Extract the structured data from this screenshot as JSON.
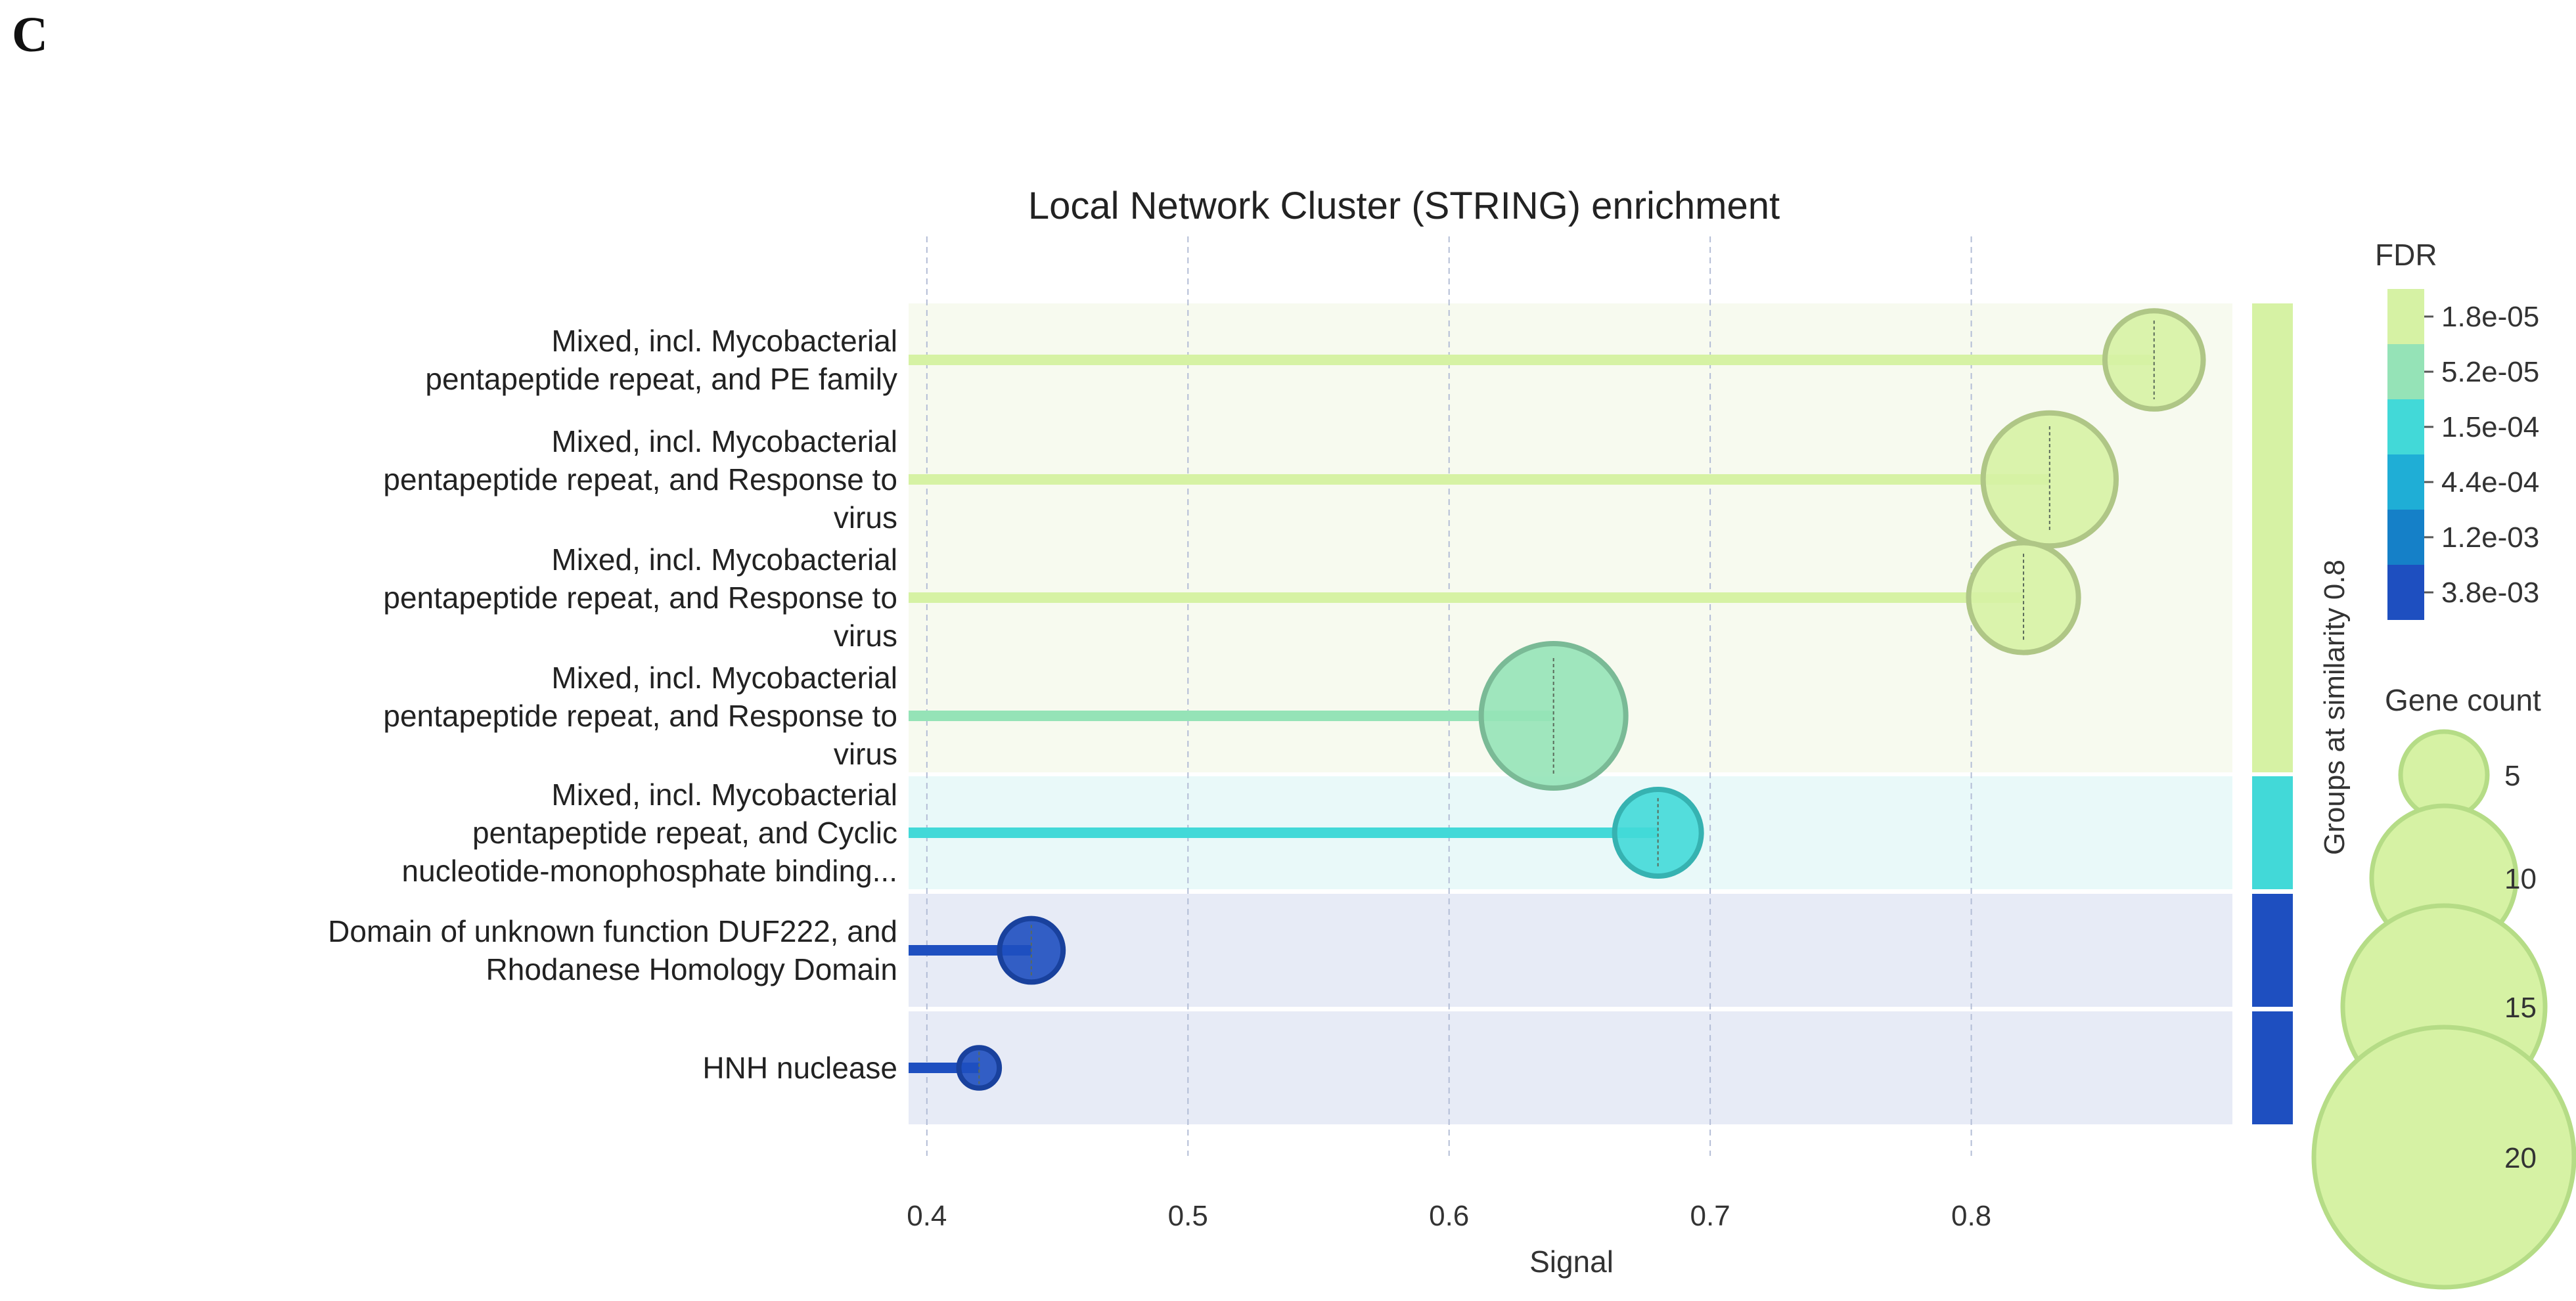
{
  "figure": {
    "panel_label": "C"
  },
  "chart_data": {
    "type": "lollipop",
    "title": "Local Network Cluster (STRING) enrichment",
    "xlabel": "Signal",
    "ylabel": "",
    "xlim": [
      0.393,
      0.9
    ],
    "xticks": [
      "0.4",
      "0.5",
      "0.6",
      "0.7",
      "0.8"
    ],
    "xtick_values": [
      0.4,
      0.5,
      0.6,
      0.7,
      0.8
    ],
    "grid": true,
    "terms": [
      {
        "label_lines": [
          "Mixed, incl. Mycobacterial",
          "pentapeptide repeat, and PE family"
        ],
        "signal": 0.87,
        "gene_count": 6,
        "fdr_color": "#d6f2a4",
        "group": 0
      },
      {
        "label_lines": [
          "Mixed, incl. Mycobacterial",
          "pentapeptide repeat, and Response to",
          "virus"
        ],
        "signal": 0.83,
        "gene_count": 9,
        "fdr_color": "#d6f2a4",
        "group": 0
      },
      {
        "label_lines": [
          "Mixed, incl. Mycobacterial",
          "pentapeptide repeat, and Response to",
          "virus"
        ],
        "signal": 0.82,
        "gene_count": 7,
        "fdr_color": "#d6f2a4",
        "group": 0
      },
      {
        "label_lines": [
          "Mixed, incl. Mycobacterial",
          "pentapeptide repeat, and Response to",
          "virus"
        ],
        "signal": 0.64,
        "gene_count": 10,
        "fdr_color": "#95e3b7",
        "group": 0
      },
      {
        "label_lines": [
          "Mixed, incl. Mycobacterial",
          "pentapeptide repeat, and Cyclic",
          "nucleotide-monophosphate binding..."
        ],
        "signal": 0.68,
        "gene_count": 5,
        "fdr_color": "#42d9d8",
        "group": 1
      },
      {
        "label_lines": [
          "Domain of unknown function DUF222, and",
          "Rhodanese Homology Domain"
        ],
        "signal": 0.44,
        "gene_count": 3,
        "fdr_color": "#1e4fc0",
        "group": 2
      },
      {
        "label_lines": [
          "HNH nuclease"
        ],
        "signal": 0.42,
        "gene_count": 1,
        "fdr_color": "#1e4fc0",
        "group": 3
      }
    ],
    "groups": [
      {
        "bg_color": "#f7faef",
        "bar_color": "#d6f2a4"
      },
      {
        "bg_color": "#e9f9f9",
        "bar_color": "#42d9d8"
      },
      {
        "bg_color": "#e7ebf6",
        "bar_color": "#1e4fc0"
      },
      {
        "bg_color": "#e7ebf6",
        "bar_color": "#1e4fc0"
      }
    ],
    "groups_axis_label": "Groups at similarity 0.8",
    "legend_fdr": {
      "title": "FDR",
      "placement": "right",
      "entries": [
        {
          "label": "1.8e-05",
          "color": "#d6f2a4"
        },
        {
          "label": "5.2e-05",
          "color": "#95e3b7"
        },
        {
          "label": "1.5e-04",
          "color": "#42d9d8"
        },
        {
          "label": "4.4e-04",
          "color": "#1faed6"
        },
        {
          "label": "1.2e-03",
          "color": "#1580c8"
        },
        {
          "label": "3.8e-03",
          "color": "#1e4fc0"
        }
      ]
    },
    "legend_gene_count": {
      "title": "Gene count",
      "placement": "right",
      "entries": [
        {
          "label": "5",
          "value": 5
        },
        {
          "label": "10",
          "value": 10
        },
        {
          "label": "15",
          "value": 15
        },
        {
          "label": "20",
          "value": 20
        }
      ],
      "marker_color": "#d6f2a4",
      "marker_stroke": "#b5dc86"
    }
  }
}
